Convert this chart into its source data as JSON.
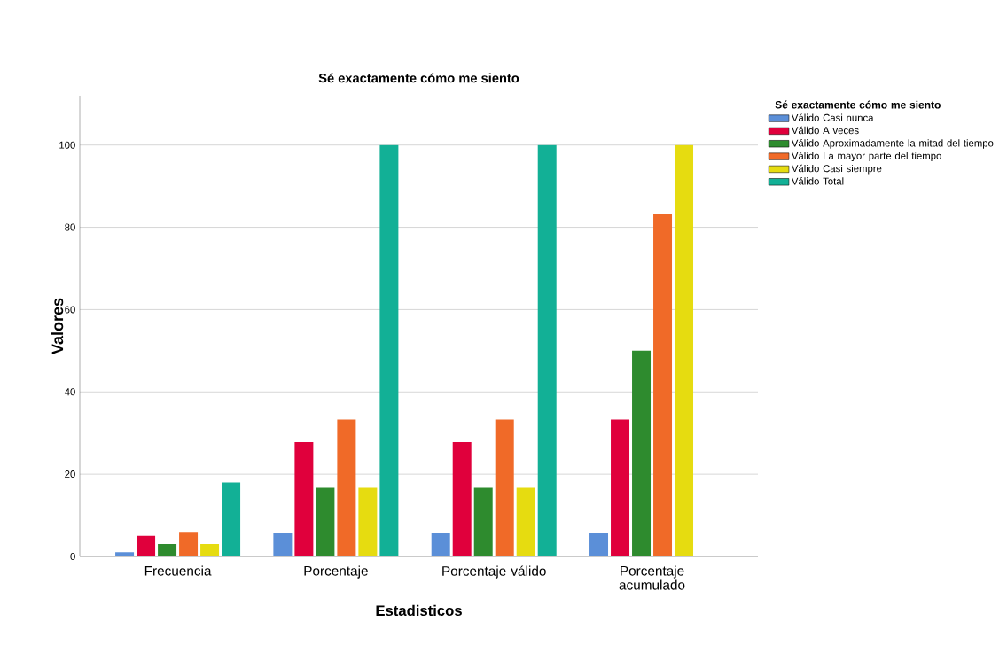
{
  "chart_data": {
    "type": "bar",
    "title": "Sé exactamente cómo me siento",
    "xlabel": "Estadisticos",
    "ylabel": "Valores",
    "legend_title": "Sé exactamente cómo me siento",
    "categories": [
      "Frecuencia",
      "Porcentaje",
      "Porcentaje válido",
      "Porcentaje acumulado"
    ],
    "series": [
      {
        "name": "Válido Casi nunca",
        "color": "#5b8fd8",
        "values": [
          1,
          5.6,
          5.6,
          5.6
        ]
      },
      {
        "name": "Válido A veces",
        "color": "#e0003c",
        "values": [
          5,
          27.8,
          27.8,
          33.3
        ]
      },
      {
        "name": "Válido Aproximadamente la mitad del tiempo",
        "color": "#2e8b2e",
        "values": [
          3,
          16.7,
          16.7,
          50
        ]
      },
      {
        "name": "Válido La mayor parte del tiempo",
        "color": "#f06a28",
        "values": [
          6,
          33.3,
          33.3,
          83.3
        ]
      },
      {
        "name": "Válido Casi siempre",
        "color": "#e6dc10",
        "values": [
          3,
          16.7,
          16.7,
          100
        ]
      },
      {
        "name": "Válido Total",
        "color": "#12b096",
        "values": [
          18,
          100,
          100,
          null
        ]
      }
    ],
    "ylim": [
      0,
      112
    ],
    "yticks": [
      0,
      20,
      40,
      60,
      80,
      100
    ],
    "grid": "y",
    "legend": "top right"
  }
}
